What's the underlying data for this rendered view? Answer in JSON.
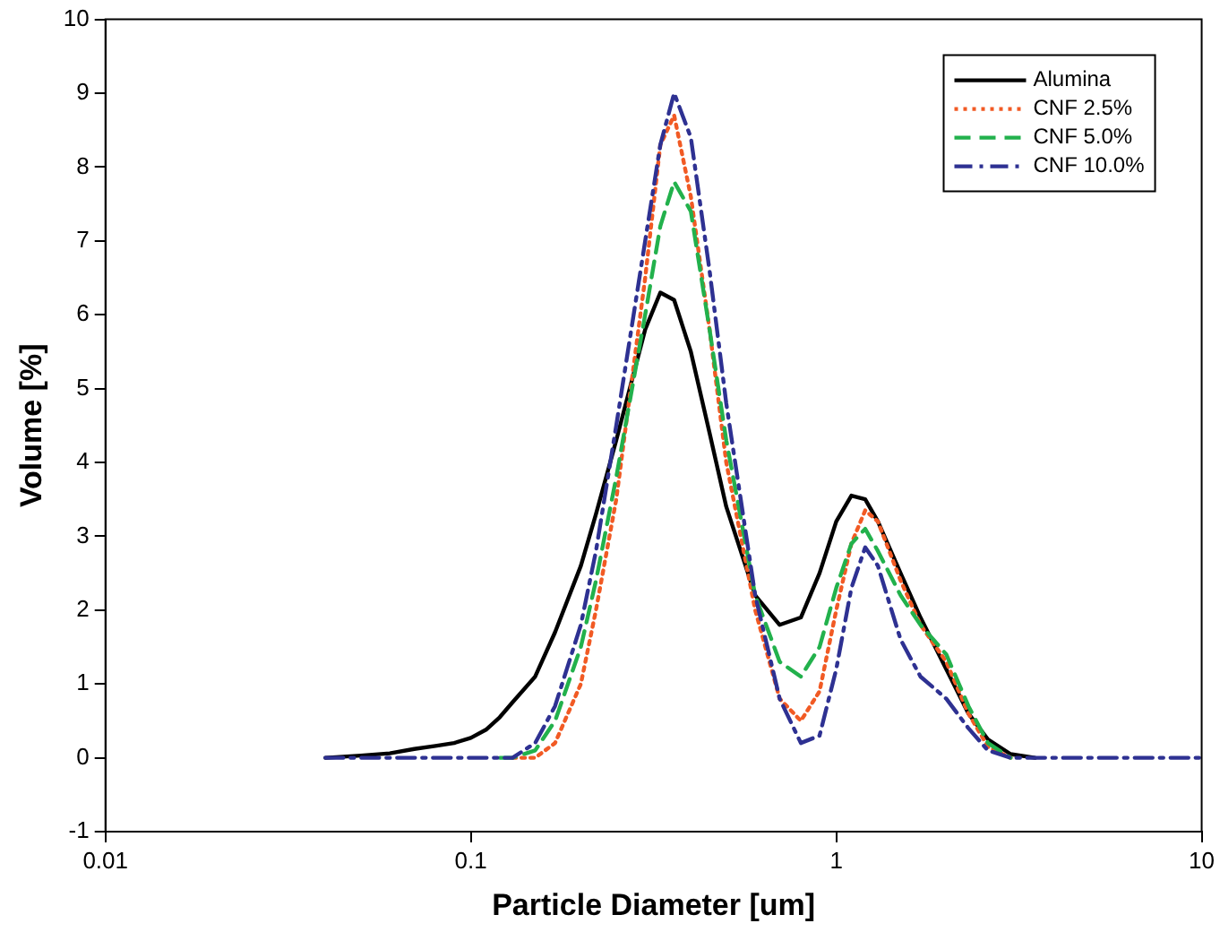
{
  "chart_data": {
    "type": "line",
    "xlabel": "Particle Diameter [um]",
    "ylabel": "Volume [%]",
    "log": "x",
    "grid": false,
    "legend": "top right",
    "marker": "none",
    "xlim": [
      0.01,
      10
    ],
    "xticks": [
      0.01,
      0.1,
      1,
      10
    ],
    "ylim": [
      -1,
      10
    ],
    "yticks": [
      -1,
      0,
      1,
      2,
      3,
      4,
      5,
      6,
      7,
      8,
      9,
      10
    ],
    "x": [
      0.04,
      0.05,
      0.06,
      0.07,
      0.08,
      0.09,
      0.1,
      0.11,
      0.12,
      0.13,
      0.15,
      0.17,
      0.2,
      0.22,
      0.25,
      0.3,
      0.33,
      0.36,
      0.4,
      0.45,
      0.5,
      0.6,
      0.7,
      0.8,
      0.9,
      1.0,
      1.1,
      1.2,
      1.3,
      1.5,
      1.7,
      2.0,
      2.3,
      2.6,
      3.0,
      3.5,
      4,
      5,
      7,
      10
    ],
    "series": [
      {
        "name": "Alumina",
        "color": "#000000",
        "line_style": "solid",
        "values": [
          0,
          0.03,
          0.06,
          0.12,
          0.16,
          0.2,
          0.27,
          0.38,
          0.55,
          0.75,
          1.1,
          1.7,
          2.6,
          3.3,
          4.3,
          5.8,
          6.3,
          6.2,
          5.5,
          4.4,
          3.4,
          2.2,
          1.8,
          1.9,
          2.5,
          3.2,
          3.55,
          3.5,
          3.2,
          2.5,
          1.9,
          1.2,
          0.6,
          0.25,
          0.05,
          0,
          null,
          null,
          null,
          null
        ]
      },
      {
        "name": "CNF 2.5%",
        "color": "#f15a24",
        "line_style": "dotted",
        "values": [
          null,
          null,
          null,
          null,
          null,
          null,
          null,
          null,
          null,
          0,
          0,
          0.2,
          1.0,
          2.0,
          3.5,
          6.5,
          8.3,
          8.7,
          7.6,
          5.8,
          4.0,
          2.0,
          0.8,
          0.5,
          0.9,
          2.0,
          2.9,
          3.35,
          3.2,
          2.4,
          1.8,
          1.3,
          0.6,
          0.15,
          0,
          null,
          null,
          null,
          null,
          null
        ]
      },
      {
        "name": "CNF 5.0%",
        "color": "#22b14c",
        "line_style": "dashed",
        "values": [
          null,
          null,
          null,
          null,
          null,
          null,
          null,
          null,
          0,
          0,
          0.1,
          0.5,
          1.5,
          2.4,
          3.8,
          6.0,
          7.2,
          7.8,
          7.4,
          5.8,
          4.3,
          2.2,
          1.3,
          1.1,
          1.5,
          2.3,
          2.9,
          3.1,
          2.8,
          2.2,
          1.8,
          1.4,
          0.7,
          0.2,
          0,
          null,
          null,
          null,
          null,
          null
        ]
      },
      {
        "name": "CNF 10.0%",
        "color": "#2e3192",
        "line_style": "dashdot",
        "values": [
          0,
          0,
          0,
          0,
          0,
          0,
          0,
          0,
          0,
          0,
          0.2,
          0.7,
          1.8,
          2.8,
          4.5,
          7.0,
          8.3,
          9.0,
          8.4,
          6.6,
          4.8,
          2.2,
          0.8,
          0.2,
          0.3,
          1.2,
          2.3,
          2.85,
          2.6,
          1.6,
          1.1,
          0.8,
          0.4,
          0.1,
          0,
          0,
          0,
          0,
          0,
          0
        ]
      }
    ]
  }
}
